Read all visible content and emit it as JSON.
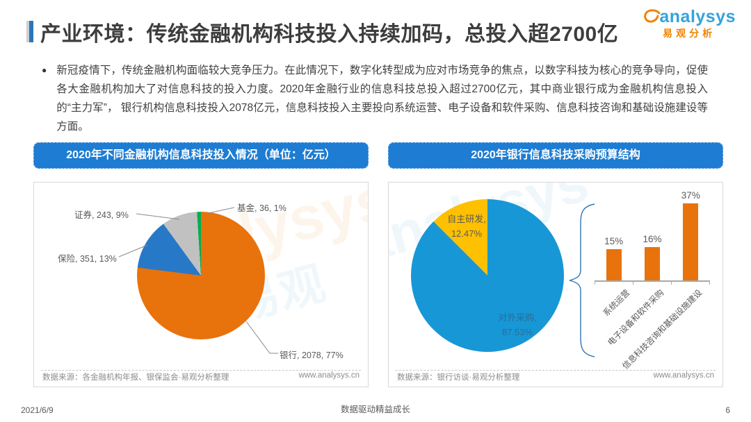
{
  "page": {
    "title": "产业环境：传统金融机构科技投入持续加码，总投入超2700亿",
    "logo": {
      "en": "analysys",
      "cn": "易观分析"
    },
    "bullet_text": "新冠疫情下，传统金融机构面临较大竞争压力。在此情况下，数字化转型成为应对市场竞争的焦点，以数字科技为核心的竞争导向，促使各大金融机构加大了对信息科技的投入力度。2020年金融行业的信息科技总投入超过2700亿元，其中商业银行成为金融机构信息投入的“主力军”， 银行机构信息科技投入2078亿元，信息科技投入主要投向系统运营、电子设备和软件采购、信息科技咨询和基础设施建设等方面。",
    "watermark": {
      "en": "analysys",
      "cn": "易观"
    },
    "footer": {
      "date": "2021/6/9",
      "slogan": "数据驱动精益成长",
      "page_number": "6"
    }
  },
  "colors": {
    "header_blue": "#1E7CD2",
    "title_accent": "#2E75B6",
    "logo_blue": "#35A3DC",
    "logo_orange": "#F08300",
    "bar_orange": "#E8720C"
  },
  "chart_data": [
    {
      "type": "pie",
      "title": "2020年不同金融机构信息科技投入情况（单位：亿元）",
      "unit": "亿元",
      "slices": [
        {
          "name": "银行",
          "value": 2078,
          "pct": 77,
          "color": "#E8720C",
          "label": "银行, 2078, 77%"
        },
        {
          "name": "保险",
          "value": 351,
          "pct": 13,
          "color": "#2878C8",
          "label": "保险, 351, 13%"
        },
        {
          "name": "证券",
          "value": 243,
          "pct": 9,
          "color": "#C1C1C1",
          "label": "证券, 243, 9%"
        },
        {
          "name": "基金",
          "value": 36,
          "pct": 1,
          "color": "#00B050",
          "label": "基金, 36, 1%"
        }
      ],
      "source": "数据来源：各金融机构年报、银保监会·易观分析整理",
      "website": "www.analysys.cn"
    },
    {
      "type": "pie+bar",
      "title": "2020年银行信息科技采购预算结构",
      "slices": [
        {
          "name": "对外采购",
          "pct": 87.53,
          "color": "#1897D6",
          "label_line1": "对外采购,",
          "label_line2": "87.53%"
        },
        {
          "name": "自主研发",
          "pct": 12.47,
          "color": "#FFC000",
          "label_line1": "自主研发,",
          "label_line2": "12.47%"
        }
      ],
      "bar": {
        "categories": [
          "系统运营",
          "电子设备和软件采购",
          "信息科技咨询和基础设施建设"
        ],
        "values": [
          15,
          16,
          37
        ],
        "value_labels": [
          "15%",
          "16%",
          "37%"
        ],
        "color": "#E8720C"
      },
      "source": "数据来源：银行访谈·易观分析整理",
      "website": "www.analysys.cn"
    }
  ]
}
